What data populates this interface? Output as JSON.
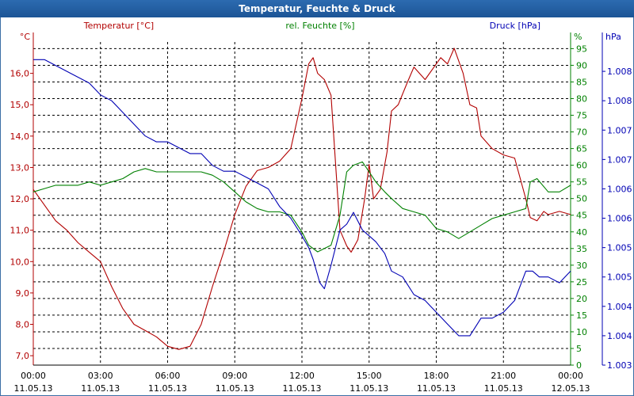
{
  "title": "Temperatur, Feuchte & Druck",
  "colors": {
    "temperature": "#b20000",
    "humidity": "#008000",
    "pressure": "#0000b4",
    "grid": "#000000",
    "title_bg": "#1f5a9c"
  },
  "chart_data": {
    "type": "line",
    "title": "Temperatur, Feuchte & Druck",
    "x_ticks": [
      {
        "time": "00:00",
        "date": "11.05.13"
      },
      {
        "time": "03:00",
        "date": "11.05.13"
      },
      {
        "time": "06:00",
        "date": "11.05.13"
      },
      {
        "time": "09:00",
        "date": "11.05.13"
      },
      {
        "time": "12:00",
        "date": "11.05.13"
      },
      {
        "time": "15:00",
        "date": "11.05.13"
      },
      {
        "time": "18:00",
        "date": "11.05.13"
      },
      {
        "time": "21:00",
        "date": "11.05.13"
      },
      {
        "time": "00:00",
        "date": "12.05.13"
      }
    ],
    "x_range_hours": [
      0,
      24
    ],
    "axes": {
      "left": {
        "label": "Temperatur [°C]",
        "unit": "°C",
        "range": [
          6.7,
          17.0
        ],
        "ticks": [
          "7,0",
          "8,0",
          "9,0",
          "10,0",
          "11,0",
          "12,0",
          "13,0",
          "14,0",
          "15,0",
          "16,0"
        ]
      },
      "middle": {
        "label": "rel. Feuchte [%]",
        "unit": "%",
        "range": [
          0,
          97
        ],
        "ticks": [
          "0",
          "5",
          "10",
          "15",
          "20",
          "25",
          "30",
          "35",
          "40",
          "45",
          "50",
          "55",
          "60",
          "65",
          "70",
          "75",
          "80",
          "85",
          "90",
          "95"
        ]
      },
      "right": {
        "label": "Druck [hPa]",
        "unit": "hPa",
        "range": [
          1003.0,
          1008.5
        ],
        "ticks": [
          "1.008",
          "1.008",
          "1.007",
          "1.007",
          "1.006",
          "1.006",
          "1.005",
          "1.005",
          "1.004",
          "1.004",
          "1.003"
        ],
        "tick_values": [
          1008.0,
          1007.5,
          1007.0,
          1006.5,
          1006.0,
          1005.5,
          1005.0,
          1004.5,
          1004.0,
          1003.5,
          1003.0
        ]
      }
    },
    "series": [
      {
        "name": "Temperatur",
        "axis": "left",
        "color": "#b20000",
        "x": [
          0,
          0.3,
          0.7,
          1,
          1.5,
          2,
          2.5,
          3,
          3.5,
          4,
          4.5,
          5,
          5.5,
          6,
          6.5,
          7,
          7.5,
          8,
          8.5,
          9,
          9.5,
          10,
          10.5,
          11,
          11.5,
          12,
          12.3,
          12.5,
          12.7,
          13,
          13.3,
          13.7,
          14,
          14.2,
          14.5,
          14.8,
          15,
          15.2,
          15.5,
          15.8,
          16,
          16.3,
          16.7,
          17,
          17.5,
          18,
          18.2,
          18.5,
          18.8,
          19.2,
          19.5,
          19.8,
          20,
          20.5,
          21,
          21.5,
          22,
          22.2,
          22.5,
          22.8,
          23,
          23.5,
          24
        ],
        "values": [
          12.3,
          12.0,
          11.6,
          11.3,
          11.0,
          10.6,
          10.3,
          10.0,
          9.2,
          8.5,
          8.0,
          7.8,
          7.6,
          7.3,
          7.2,
          7.3,
          8.0,
          9.2,
          10.3,
          11.5,
          12.4,
          12.9,
          13.0,
          13.2,
          13.6,
          15.2,
          16.3,
          16.5,
          16.0,
          15.8,
          15.3,
          11.0,
          10.5,
          10.3,
          10.7,
          12.0,
          13.1,
          12.0,
          12.3,
          13.5,
          14.8,
          15.0,
          15.7,
          16.2,
          15.8,
          16.3,
          16.5,
          16.3,
          16.8,
          16.0,
          15.0,
          14.9,
          14.0,
          13.6,
          13.4,
          13.3,
          12.0,
          11.4,
          11.3,
          11.6,
          11.5,
          11.6,
          11.5
        ]
      },
      {
        "name": "rel. Feuchte",
        "axis": "middle",
        "color": "#008000",
        "x": [
          0,
          0.5,
          1,
          1.5,
          2,
          2.5,
          3,
          3.5,
          4,
          4.5,
          5,
          5.5,
          6,
          6.5,
          7,
          7.5,
          8,
          8.5,
          9,
          9.5,
          10,
          10.5,
          11,
          11.5,
          12,
          12.3,
          12.7,
          13,
          13.3,
          13.7,
          14,
          14.3,
          14.7,
          15,
          15.3,
          15.7,
          16,
          16.5,
          17,
          17.5,
          18,
          18.5,
          19,
          19.5,
          20,
          20.5,
          21,
          21.5,
          22,
          22.2,
          22.5,
          23,
          23.5,
          24
        ],
        "values": [
          52,
          53,
          54,
          54,
          54,
          55,
          54,
          55,
          56,
          58,
          59,
          58,
          58,
          58,
          58,
          58,
          57,
          55,
          52,
          49,
          47,
          46,
          46,
          45,
          40,
          36,
          34,
          35,
          36,
          45,
          58,
          60,
          61,
          58,
          55,
          52,
          50,
          47,
          46,
          45,
          41,
          40,
          38,
          40,
          42,
          44,
          45,
          46,
          47,
          55,
          56,
          52,
          52,
          54
        ]
      },
      {
        "name": "Druck",
        "axis": "right",
        "color": "#0000b4",
        "x": [
          0,
          0.5,
          1,
          1.5,
          2,
          2.5,
          3,
          3.5,
          4,
          4.5,
          5,
          5.5,
          6,
          6.5,
          7,
          7.5,
          8,
          8.5,
          9,
          9.5,
          10,
          10.5,
          11,
          11.5,
          12,
          12.3,
          12.5,
          12.8,
          13,
          13.3,
          13.7,
          14,
          14.3,
          14.7,
          15,
          15.3,
          15.7,
          16,
          16.5,
          17,
          17.5,
          18,
          18.5,
          19,
          19.5,
          20,
          20.5,
          21,
          21.5,
          22,
          22.3,
          22.6,
          23,
          23.5,
          24
        ],
        "values": [
          1008.2,
          1008.2,
          1008.1,
          1008.0,
          1007.9,
          1007.8,
          1007.6,
          1007.5,
          1007.3,
          1007.1,
          1006.9,
          1006.8,
          1006.8,
          1006.7,
          1006.6,
          1006.6,
          1006.4,
          1006.3,
          1006.3,
          1006.2,
          1006.1,
          1006.0,
          1005.7,
          1005.5,
          1005.2,
          1005.0,
          1004.8,
          1004.4,
          1004.3,
          1004.7,
          1005.3,
          1005.4,
          1005.6,
          1005.3,
          1005.2,
          1005.1,
          1004.9,
          1004.6,
          1004.5,
          1004.2,
          1004.1,
          1003.9,
          1003.7,
          1003.5,
          1003.5,
          1003.8,
          1003.8,
          1003.9,
          1004.1,
          1004.6,
          1004.6,
          1004.5,
          1004.5,
          1004.4,
          1004.6
        ]
      }
    ]
  }
}
